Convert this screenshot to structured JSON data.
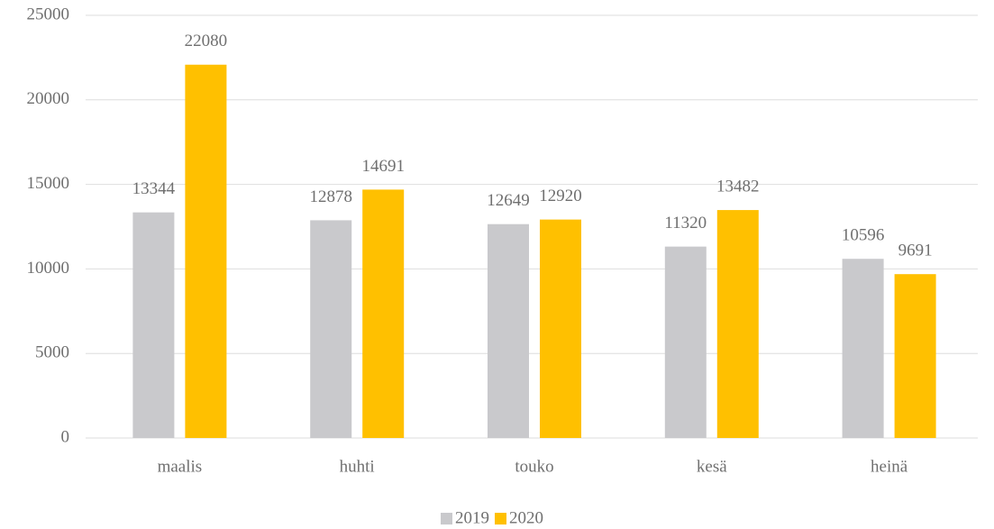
{
  "chart_data": {
    "type": "bar",
    "categories": [
      "maalis",
      "huhti",
      "touko",
      "kesä",
      "heinä"
    ],
    "series": [
      {
        "name": "2019",
        "color": "#c9c9cc",
        "values": [
          13344,
          12878,
          12649,
          11320,
          10596
        ]
      },
      {
        "name": "2020",
        "color": "#ffc000",
        "values": [
          22080,
          14691,
          12920,
          13482,
          9691
        ]
      }
    ],
    "ylim": [
      0,
      25000
    ],
    "yticks": [
      0,
      5000,
      10000,
      15000,
      20000,
      25000
    ],
    "grid": true,
    "legend": "bottom"
  }
}
